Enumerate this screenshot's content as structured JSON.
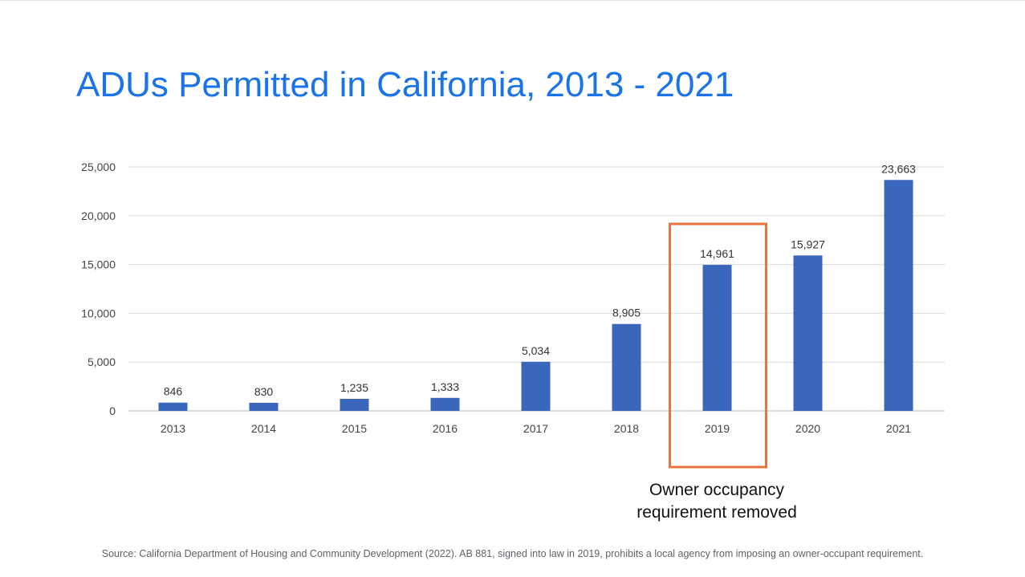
{
  "slide": {
    "title": "ADUs Permitted in California, 2013 - 2021",
    "annotation_line1": "Owner occupancy",
    "annotation_line2": "requirement removed",
    "source": "Source: California Department of Housing and Community Development (2022). AB 881, signed into law in 2019, prohibits a local agency from imposing an owner-occupant requirement."
  },
  "colors": {
    "title": "#1a73e8",
    "bar": "#3a67bb",
    "highlight_box": "#e8743b",
    "gridline": "#d9d9d9",
    "axis_text": "#444444"
  },
  "chart_data": {
    "type": "bar",
    "title": "ADUs Permitted in California, 2013 - 2021",
    "xlabel": "",
    "ylabel": "",
    "categories": [
      "2013",
      "2014",
      "2015",
      "2016",
      "2017",
      "2018",
      "2019",
      "2020",
      "2021"
    ],
    "values": [
      846,
      830,
      1235,
      1333,
      5034,
      8905,
      14961,
      15927,
      23663
    ],
    "data_labels": [
      "846",
      "830",
      "1,235",
      "1,333",
      "5,034",
      "8,905",
      "14,961",
      "15,927",
      "23,663"
    ],
    "ylim": [
      0,
      25000
    ],
    "yticks": [
      0,
      5000,
      10000,
      15000,
      20000,
      25000
    ],
    "ytick_labels": [
      "0",
      "5,000",
      "10,000",
      "15,000",
      "20,000",
      "25,000"
    ],
    "grid": true,
    "legend": "none",
    "highlight_category": "2019",
    "highlight_note": "Owner occupancy requirement removed"
  }
}
